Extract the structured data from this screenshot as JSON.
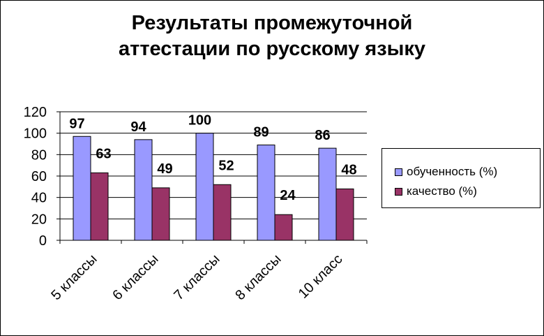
{
  "chart_data": {
    "type": "bar",
    "title_lines": [
      "Результаты промежуточной",
      "аттестации по русскому языку"
    ],
    "categories": [
      "5 классы",
      "6 классы",
      "7 классы",
      "8 классы",
      "10 класс"
    ],
    "series": [
      {
        "name": "обученность (%)",
        "values": [
          97,
          94,
          100,
          89,
          86
        ],
        "color": "#9999FF"
      },
      {
        "name": "качество (%)",
        "values": [
          63,
          49,
          52,
          24,
          48
        ],
        "color": "#993366"
      }
    ],
    "ylim": [
      0,
      120
    ],
    "yticks": [
      0,
      20,
      40,
      60,
      80,
      100,
      120
    ],
    "grid": true,
    "legend_position": "right",
    "data_labels": true
  }
}
